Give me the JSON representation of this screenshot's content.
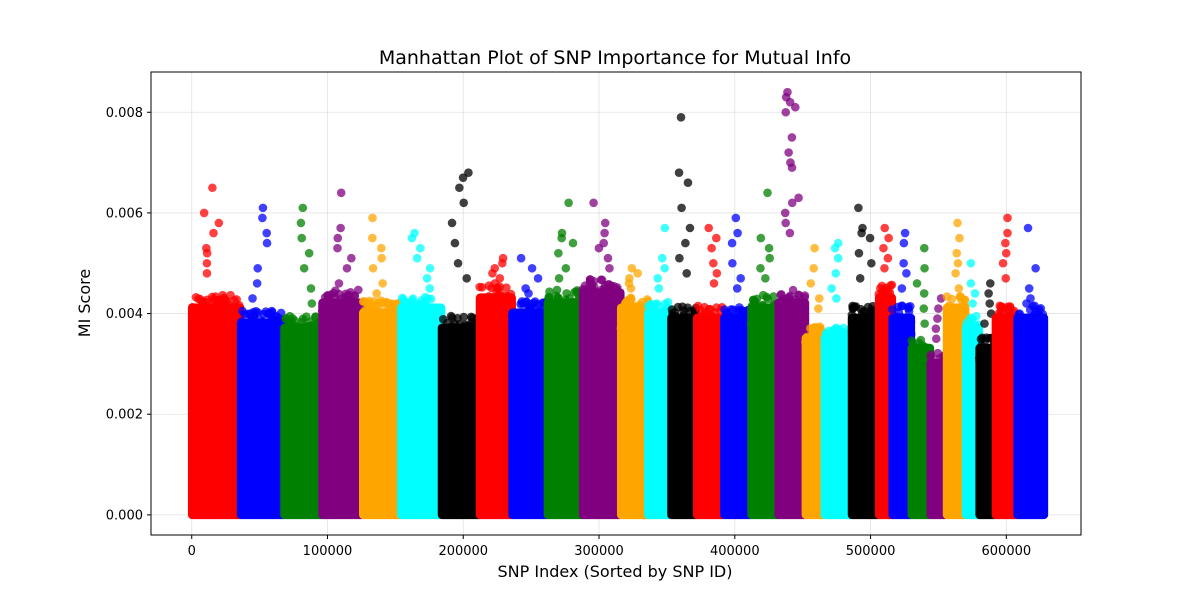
{
  "chart_data": {
    "type": "scatter",
    "title": "Manhattan Plot of SNP Importance for Mutual Info",
    "xlabel": "SNP Index (Sorted by SNP ID)",
    "ylabel": "MI Score",
    "xlim": [
      -30000,
      655000
    ],
    "ylim": [
      -0.0004,
      0.0088
    ],
    "xticks": [
      0,
      100000,
      200000,
      300000,
      400000,
      500000,
      600000
    ],
    "xtick_labels": [
      "0",
      "100000",
      "200000",
      "300000",
      "400000",
      "500000",
      "600000"
    ],
    "yticks": [
      0.0,
      0.002,
      0.004,
      0.006,
      0.008
    ],
    "ytick_labels": [
      "0.000",
      "0.002",
      "0.004",
      "0.006",
      "0.008"
    ],
    "grid": true,
    "legend": "none",
    "chromosomes": [
      {
        "chr": 1,
        "start": 0,
        "end": 36000,
        "color": "#ff0000",
        "body_max": 0.0042,
        "outliers": [
          0.0065,
          0.006,
          0.0058,
          0.0056,
          0.0053,
          0.0052,
          0.005,
          0.0048
        ]
      },
      {
        "chr": 2,
        "start": 36000,
        "end": 68000,
        "color": "#0000ff",
        "body_max": 0.0039,
        "outliers": [
          0.0061,
          0.0059,
          0.0056,
          0.0054,
          0.0049,
          0.0046,
          0.0043
        ]
      },
      {
        "chr": 3,
        "start": 68000,
        "end": 96000,
        "color": "#008000",
        "body_max": 0.0038,
        "outliers": [
          0.0061,
          0.0058,
          0.0055,
          0.0052,
          0.0049,
          0.0045,
          0.0042
        ]
      },
      {
        "chr": 4,
        "start": 96000,
        "end": 126000,
        "color": "#800080",
        "body_max": 0.0043,
        "outliers": [
          0.0064,
          0.0057,
          0.0055,
          0.0053,
          0.0051,
          0.0049,
          0.0046
        ]
      },
      {
        "chr": 5,
        "start": 126000,
        "end": 154000,
        "color": "#ffa500",
        "body_max": 0.0041,
        "outliers": [
          0.0059,
          0.0055,
          0.0053,
          0.0051,
          0.0049,
          0.0046,
          0.0044
        ]
      },
      {
        "chr": 6,
        "start": 154000,
        "end": 184000,
        "color": "#00ffff",
        "body_max": 0.0042,
        "outliers": [
          0.0056,
          0.0055,
          0.0053,
          0.0051,
          0.0049,
          0.0047,
          0.0045
        ]
      },
      {
        "chr": 7,
        "start": 184000,
        "end": 212000,
        "color": "#000000",
        "body_max": 0.0038,
        "outliers": [
          0.0068,
          0.0067,
          0.0065,
          0.0062,
          0.0058,
          0.0054,
          0.005,
          0.0047
        ]
      },
      {
        "chr": 8,
        "start": 212000,
        "end": 236000,
        "color": "#ff0000",
        "body_max": 0.0044,
        "outliers": [
          0.0051,
          0.005,
          0.0049,
          0.0048,
          0.0047,
          0.0046
        ]
      },
      {
        "chr": 9,
        "start": 236000,
        "end": 262000,
        "color": "#0000ff",
        "body_max": 0.0041,
        "outliers": [
          0.0051,
          0.0049,
          0.0047,
          0.0045,
          0.0044
        ]
      },
      {
        "chr": 10,
        "start": 262000,
        "end": 288000,
        "color": "#008000",
        "body_max": 0.0043,
        "outliers": [
          0.0062,
          0.0056,
          0.0055,
          0.0054,
          0.0052,
          0.0049,
          0.0047
        ]
      },
      {
        "chr": 11,
        "start": 288000,
        "end": 316000,
        "color": "#800080",
        "body_max": 0.0045,
        "outliers": [
          0.0062,
          0.0058,
          0.0056,
          0.0054,
          0.0053,
          0.0051,
          0.0049
        ]
      },
      {
        "chr": 12,
        "start": 316000,
        "end": 336000,
        "color": "#ffa500",
        "body_max": 0.0042,
        "outliers": [
          0.0049,
          0.0048,
          0.0047,
          0.0046,
          0.0045
        ]
      },
      {
        "chr": 13,
        "start": 336000,
        "end": 353000,
        "color": "#00ffff",
        "body_max": 0.0041,
        "outliers": [
          0.0057,
          0.0051,
          0.0049,
          0.0047,
          0.0045
        ]
      },
      {
        "chr": 14,
        "start": 353000,
        "end": 372000,
        "color": "#000000",
        "body_max": 0.004,
        "outliers": [
          0.0079,
          0.0068,
          0.0066,
          0.0061,
          0.0057,
          0.0054,
          0.0051,
          0.0048
        ]
      },
      {
        "chr": 15,
        "start": 372000,
        "end": 392000,
        "color": "#ff0000",
        "body_max": 0.004,
        "outliers": [
          0.0057,
          0.0055,
          0.0053,
          0.005,
          0.0048,
          0.0046
        ]
      },
      {
        "chr": 16,
        "start": 392000,
        "end": 412000,
        "color": "#0000ff",
        "body_max": 0.004,
        "outliers": [
          0.0059,
          0.0056,
          0.0054,
          0.005,
          0.0047,
          0.0045
        ]
      },
      {
        "chr": 17,
        "start": 412000,
        "end": 432000,
        "color": "#008000",
        "body_max": 0.0042,
        "outliers": [
          0.0064,
          0.0055,
          0.0053,
          0.0051,
          0.0049,
          0.0047
        ]
      },
      {
        "chr": 18,
        "start": 432000,
        "end": 452000,
        "color": "#800080",
        "body_max": 0.0043,
        "outliers": [
          0.0084,
          0.0083,
          0.0082,
          0.0081,
          0.008,
          0.0075,
          0.0072,
          0.007,
          0.0069,
          0.0063,
          0.0062,
          0.006,
          0.0058,
          0.0056
        ]
      },
      {
        "chr": 19,
        "start": 452000,
        "end": 466000,
        "color": "#ffa500",
        "body_max": 0.0036,
        "outliers": [
          0.0053,
          0.0049,
          0.0046,
          0.0043,
          0.0041
        ]
      },
      {
        "chr": 20,
        "start": 466000,
        "end": 486000,
        "color": "#00ffff",
        "body_max": 0.0036,
        "outliers": [
          0.0054,
          0.0053,
          0.0051,
          0.0048,
          0.0045,
          0.0043
        ]
      },
      {
        "chr": 21,
        "start": 486000,
        "end": 506000,
        "color": "#000000",
        "body_max": 0.004,
        "outliers": [
          0.0061,
          0.0057,
          0.0056,
          0.0055,
          0.0052,
          0.005,
          0.0047
        ]
      },
      {
        "chr": 22,
        "start": 506000,
        "end": 516000,
        "color": "#ff0000",
        "body_max": 0.0044,
        "outliers": [
          0.0057,
          0.0055,
          0.0053,
          0.0051,
          0.0049
        ]
      },
      {
        "chr": 23,
        "start": 516000,
        "end": 530000,
        "color": "#0000ff",
        "body_max": 0.004,
        "outliers": [
          0.0056,
          0.0054,
          0.005,
          0.0048,
          0.0045
        ]
      },
      {
        "chr": 24,
        "start": 530000,
        "end": 544000,
        "color": "#008000",
        "body_max": 0.0034,
        "outliers": [
          0.0053,
          0.0049,
          0.0046,
          0.0044,
          0.0041,
          0.0038
        ]
      },
      {
        "chr": 25,
        "start": 544000,
        "end": 556000,
        "color": "#800080",
        "body_max": 0.0031,
        "outliers": [
          0.0043,
          0.0041,
          0.0039,
          0.0037,
          0.0035
        ]
      },
      {
        "chr": 26,
        "start": 556000,
        "end": 570000,
        "color": "#ffa500",
        "body_max": 0.0042,
        "outliers": [
          0.0058,
          0.0055,
          0.0052,
          0.005,
          0.0048,
          0.0045
        ]
      },
      {
        "chr": 27,
        "start": 570000,
        "end": 580000,
        "color": "#00ffff",
        "body_max": 0.0038,
        "outliers": [
          0.005,
          0.0046,
          0.0044,
          0.0042
        ]
      },
      {
        "chr": 28,
        "start": 580000,
        "end": 592000,
        "color": "#000000",
        "body_max": 0.0034,
        "outliers": [
          0.0046,
          0.0044,
          0.0042,
          0.004,
          0.0038
        ]
      },
      {
        "chr": 29,
        "start": 592000,
        "end": 608000,
        "color": "#ff0000",
        "body_max": 0.004,
        "outliers": [
          0.0059,
          0.0056,
          0.0054,
          0.0052,
          0.005,
          0.0047
        ]
      },
      {
        "chr": 30,
        "start": 608000,
        "end": 628000,
        "color": "#0000ff",
        "body_max": 0.004,
        "outliers": [
          0.0057,
          0.0049,
          0.0045,
          0.0043,
          0.0042
        ]
      }
    ]
  }
}
